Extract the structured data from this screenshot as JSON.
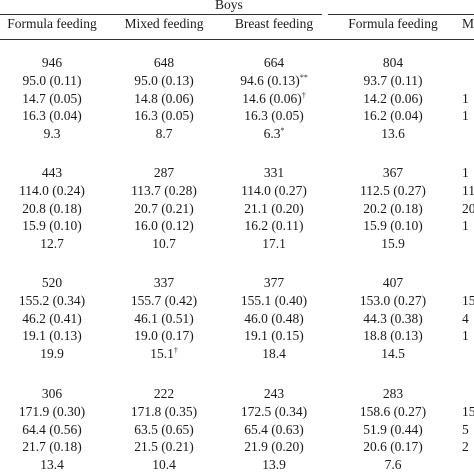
{
  "group_header": "Boys",
  "columns": [
    "Formula feeding",
    "Mixed feeding",
    "Breast feeding",
    "Formula feeding",
    "Mi"
  ],
  "blocks": [
    {
      "rows": [
        [
          "946",
          "648",
          "664",
          "804",
          ""
        ],
        [
          "95.0 (0.11)",
          "95.0 (0.13)",
          "94.6 (0.13)",
          "93.7 (0.11)",
          ""
        ],
        [
          "14.7 (0.05)",
          "14.8 (0.06)",
          "14.6 (0.06)",
          "14.2 (0.06)",
          "1"
        ],
        [
          "16.3 (0.04)",
          "16.3 (0.05)",
          "16.3 (0.05)",
          "16.2 (0.04)",
          "1"
        ],
        [
          "9.3",
          "8.7",
          "6.3",
          "13.6",
          ""
        ]
      ]
    },
    {
      "rows": [
        [
          "443",
          "287",
          "331",
          "367",
          "1"
        ],
        [
          "114.0 (0.24)",
          "113.7 (0.28)",
          "114.0 (0.27)",
          "112.5 (0.27)",
          "11"
        ],
        [
          "20.8 (0.18)",
          "20.7 (0.21)",
          "21.1 (0.20)",
          "20.2 (0.18)",
          "20"
        ],
        [
          "15.9 (0.10)",
          "16.0 (0.12)",
          "16.2 (0.11)",
          "15.9 (0.10)",
          "1"
        ],
        [
          "12.7",
          "10.7",
          "17.1",
          "15.9",
          ""
        ]
      ]
    },
    {
      "rows": [
        [
          "520",
          "337",
          "377",
          "407",
          ""
        ],
        [
          "155.2 (0.34)",
          "155.7 (0.42)",
          "155.1 (0.40)",
          "153.0 (0.27)",
          "15"
        ],
        [
          "46.2 (0.41)",
          "46.1 (0.51)",
          "46.0 (0.48)",
          "44.3 (0.38)",
          "4"
        ],
        [
          "19.1 (0.13)",
          "19.0 (0.17)",
          "19.1 (0.15)",
          "18.8 (0.13)",
          "1"
        ],
        [
          "19.9",
          "15.1",
          "18.4",
          "14.5",
          ""
        ]
      ]
    },
    {
      "rows": [
        [
          "306",
          "222",
          "243",
          "283",
          ""
        ],
        [
          "171.9 (0.30)",
          "171.8 (0.35)",
          "172.5 (0.34)",
          "158.6 (0.27)",
          "15"
        ],
        [
          "64.4 (0.56)",
          "63.5 (0.65)",
          "65.4 (0.63)",
          "51.9 (0.44)",
          "5"
        ],
        [
          "21.7 (0.18)",
          "21.5 (0.21)",
          "21.9 (0.20)",
          "20.6 (0.17)",
          "2"
        ],
        [
          "13.4",
          "10.4",
          "13.9",
          "7.6",
          ""
        ]
      ]
    }
  ],
  "marks": [
    {
      "block": 0,
      "row": 1,
      "col": 2,
      "text": "**"
    },
    {
      "block": 0,
      "row": 2,
      "col": 2,
      "text": "†"
    },
    {
      "block": 0,
      "row": 4,
      "col": 2,
      "text": "*"
    },
    {
      "block": 2,
      "row": 4,
      "col": 1,
      "text": "†"
    }
  ]
}
